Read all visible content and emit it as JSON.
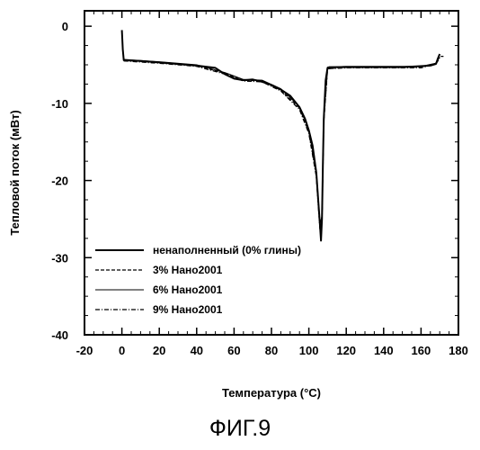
{
  "figure_caption": "ФИГ.9",
  "chart_data": {
    "type": "line",
    "title": "",
    "xlabel": "Температура (°C)",
    "ylabel": "Тепловой поток (мВт)",
    "xlim": [
      -20,
      180
    ],
    "ylim": [
      -40,
      2
    ],
    "xticks": [
      -20,
      0,
      20,
      40,
      60,
      80,
      100,
      120,
      140,
      160,
      180
    ],
    "yticks": [
      0,
      -10,
      -20,
      -30,
      -40
    ],
    "grid": false,
    "legend_position": "bottom-left",
    "series": [
      {
        "name": "ненаполненный (0% глины)",
        "style": "solid",
        "x": [
          0,
          0.5,
          1,
          10,
          20,
          30,
          40,
          50,
          55,
          60,
          65,
          70,
          75,
          80,
          85,
          90,
          95,
          98,
          100,
          102,
          104,
          105,
          106,
          106.5,
          107,
          107.5,
          108,
          109,
          110,
          111,
          115,
          130,
          150,
          165,
          168,
          169,
          170
        ],
        "y": [
          -0.5,
          -3,
          -4.4,
          -4.5,
          -4.7,
          -4.9,
          -5.1,
          -5.4,
          -6.2,
          -6.8,
          -7.0,
          -6.9,
          -7.2,
          -7.6,
          -8.2,
          -9.0,
          -10.5,
          -12.0,
          -13.5,
          -15.5,
          -19.0,
          -22.5,
          -26.0,
          -27.8,
          -25.0,
          -18.0,
          -12.0,
          -7.0,
          -5.4,
          -5.3,
          -5.3,
          -5.3,
          -5.3,
          -5.1,
          -4.9,
          -4.2,
          -3.6
        ]
      },
      {
        "name": "3% Нано2001",
        "style": "dashed",
        "x": [
          1,
          20,
          40,
          55,
          65,
          75,
          85,
          95,
          100,
          104,
          106,
          107,
          108,
          110,
          120,
          160,
          168,
          170,
          172
        ],
        "y": [
          -4.4,
          -4.7,
          -5.1,
          -6.1,
          -7.0,
          -7.1,
          -8.3,
          -10.6,
          -13.7,
          -19.2,
          -26.2,
          -25.2,
          -12.2,
          -5.5,
          -5.3,
          -5.3,
          -4.8,
          -3.9,
          -3.9
        ]
      },
      {
        "name": "6% Нано2001",
        "style": "solid-thin",
        "x": [
          1,
          20,
          40,
          55,
          65,
          75,
          85,
          95,
          100,
          104,
          106,
          107,
          108,
          110,
          120,
          160,
          168,
          170
        ],
        "y": [
          -4.3,
          -4.6,
          -5.0,
          -6.0,
          -6.9,
          -7.0,
          -8.1,
          -10.4,
          -13.4,
          -18.8,
          -25.6,
          -24.6,
          -11.8,
          -5.3,
          -5.2,
          -5.2,
          -4.8,
          -4.0
        ]
      },
      {
        "name": "9% Нано2001",
        "style": "dash-dot",
        "x": [
          1,
          20,
          40,
          55,
          65,
          75,
          85,
          95,
          100,
          104,
          106,
          107,
          108,
          110,
          120,
          160,
          168,
          170
        ],
        "y": [
          -4.5,
          -4.8,
          -5.2,
          -6.2,
          -7.1,
          -7.2,
          -8.4,
          -10.8,
          -13.9,
          -19.5,
          -26.6,
          -25.6,
          -12.4,
          -5.5,
          -5.4,
          -5.4,
          -4.9,
          -4.1
        ]
      }
    ]
  }
}
